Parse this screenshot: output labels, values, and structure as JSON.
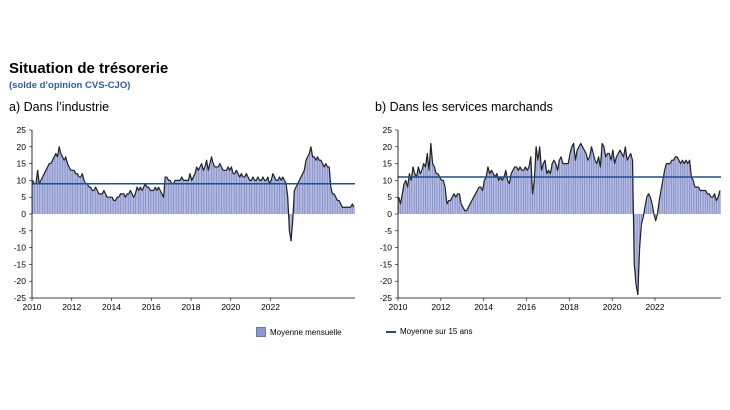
{
  "title": "Situation de trésorerie",
  "subtitle": "(solde d’opinion CVS-CJO)",
  "legend": {
    "bars_label": "Moyenne mensuelle",
    "line_label": "Moyenne sur 15 ans",
    "bar_color": "#8c97cf",
    "line_color": "#1c4f8e"
  },
  "chart_data": [
    {
      "type": "bar",
      "title": "a)  Dans l’industrie",
      "x_start": 2010.0,
      "x_step": 0.08333,
      "ylim": [
        -25,
        25
      ],
      "yticks": [
        -25,
        -20,
        -15,
        -10,
        -5,
        0,
        5,
        10,
        15,
        20,
        25
      ],
      "xticks": [
        2010,
        2012,
        2014,
        2016,
        2018,
        2020,
        2022
      ],
      "average_15y": 9,
      "values": [
        10,
        9,
        9,
        13,
        9,
        10,
        11,
        12,
        13,
        14,
        15,
        15,
        16,
        17,
        18,
        17,
        20,
        18,
        17,
        16,
        17,
        15,
        14,
        13,
        13,
        13,
        12,
        12,
        11,
        11,
        12,
        10,
        9,
        9,
        8,
        8,
        7,
        7,
        8,
        7,
        6,
        6,
        6,
        7,
        6,
        5,
        5,
        5,
        5,
        4,
        4,
        5,
        5,
        6,
        6,
        6,
        5,
        6,
        6,
        7,
        6,
        5,
        6,
        8,
        7,
        8,
        7,
        8,
        9,
        8,
        8,
        7,
        7,
        7,
        8,
        7,
        8,
        7,
        6,
        5,
        11,
        11,
        10,
        10,
        9,
        9,
        10,
        10,
        10,
        10,
        11,
        10,
        10,
        10,
        10,
        12,
        10,
        11,
        12,
        14,
        13,
        14,
        15,
        13,
        14,
        16,
        13,
        15,
        17,
        15,
        14,
        14,
        14,
        15,
        14,
        13,
        13,
        13,
        14,
        13,
        14,
        12,
        12,
        13,
        12,
        11,
        12,
        11,
        11,
        12,
        11,
        10,
        10,
        11,
        10,
        10,
        11,
        10,
        10,
        11,
        10,
        10,
        11,
        9,
        10,
        12,
        11,
        10,
        10,
        11,
        10,
        11,
        10,
        9,
        5,
        -5,
        -8,
        -2,
        7,
        8,
        9,
        10,
        11,
        12,
        13,
        16,
        17,
        18,
        20,
        17,
        17,
        16,
        17,
        16,
        16,
        15,
        14,
        15,
        14,
        14,
        8,
        6,
        6,
        5,
        4,
        4,
        3,
        2,
        2,
        2,
        2,
        2,
        2,
        3,
        2
      ],
      "xlabel": "",
      "ylabel": ""
    },
    {
      "type": "bar",
      "title": "b)  Dans les services marchands",
      "x_start": 2010.0,
      "x_step": 0.08333,
      "ylim": [
        -25,
        25
      ],
      "yticks": [
        -25,
        -20,
        -15,
        -10,
        -5,
        0,
        5,
        10,
        15,
        20,
        25
      ],
      "xticks": [
        2010,
        2012,
        2014,
        2016,
        2018,
        2020,
        2022
      ],
      "average_15y": 11,
      "values": [
        5,
        3,
        6,
        9,
        10,
        8,
        12,
        10,
        14,
        12,
        11,
        14,
        12,
        13,
        15,
        14,
        18,
        13,
        21,
        15,
        14,
        12,
        12,
        11,
        10,
        10,
        8,
        3,
        4,
        4,
        5,
        6,
        5,
        6,
        6,
        3,
        2,
        1,
        1,
        2,
        3,
        4,
        5,
        6,
        7,
        8,
        8,
        7,
        10,
        11,
        14,
        12,
        13,
        12,
        11,
        12,
        10,
        11,
        10,
        11,
        13,
        10,
        9,
        12,
        13,
        14,
        14,
        13,
        14,
        13,
        13,
        14,
        13,
        14,
        17,
        6,
        10,
        20,
        16,
        20,
        13,
        15,
        16,
        12,
        13,
        12,
        15,
        16,
        15,
        13,
        16,
        17,
        15,
        15,
        15,
        15,
        18,
        20,
        21,
        16,
        19,
        20,
        21,
        20,
        19,
        18,
        16,
        17,
        20,
        18,
        16,
        15,
        17,
        14,
        21,
        20,
        17,
        18,
        18,
        16,
        19,
        15,
        17,
        18,
        19,
        18,
        17,
        20,
        16,
        17,
        18,
        16,
        -15,
        -21,
        -24,
        -10,
        -3,
        -1,
        2,
        5,
        6,
        5,
        3,
        0,
        -2,
        0,
        4,
        7,
        10,
        13,
        15,
        15,
        15,
        16,
        16,
        17,
        17,
        16,
        15,
        16,
        15,
        16,
        15,
        16,
        11,
        10,
        8,
        8,
        8,
        7,
        7,
        7,
        7,
        6,
        6,
        5,
        5,
        6,
        4,
        5,
        7
      ],
      "xlabel": "",
      "ylabel": ""
    }
  ]
}
